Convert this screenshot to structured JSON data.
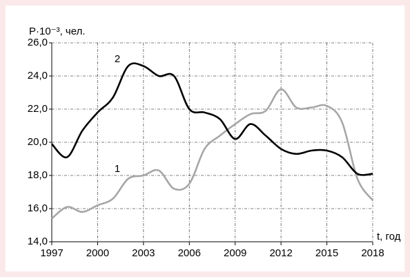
{
  "chart_data": {
    "type": "line",
    "y_label": "P·10⁻³, чел.",
    "x_label": "t, год",
    "x": [
      1997,
      1998,
      1999,
      2000,
      2001,
      2002,
      2003,
      2004,
      2005,
      2006,
      2007,
      2008,
      2009,
      2010,
      2011,
      2012,
      2013,
      2014,
      2015,
      2016,
      2017,
      2018
    ],
    "series": [
      {
        "name": "1",
        "color": "#a6a6a6",
        "values": [
          15.4,
          16.1,
          15.8,
          16.2,
          16.6,
          17.8,
          18.0,
          18.3,
          17.2,
          17.5,
          19.6,
          20.4,
          21.1,
          21.7,
          21.9,
          23.2,
          22.1,
          22.1,
          22.2,
          21.2,
          17.8,
          16.5
        ]
      },
      {
        "name": "2",
        "color": "#000000",
        "values": [
          19.9,
          19.1,
          20.7,
          21.8,
          22.7,
          24.6,
          24.6,
          24.0,
          24.0,
          22.0,
          21.8,
          21.4,
          20.2,
          21.1,
          20.4,
          19.6,
          19.3,
          19.5,
          19.5,
          19.1,
          18.1,
          18.1
        ]
      }
    ],
    "xlim": [
      1997,
      2018
    ],
    "xticks": [
      1997,
      2000,
      2003,
      2006,
      2009,
      2012,
      2015,
      2018
    ],
    "ylim": [
      14,
      26
    ],
    "yticks": [
      {
        "value": 14,
        "label": "14,0"
      },
      {
        "value": 16,
        "label": "16,0"
      },
      {
        "value": 18,
        "label": "18,0"
      },
      {
        "value": 20,
        "label": "20,0"
      },
      {
        "value": 22,
        "label": "22,0"
      },
      {
        "value": 24,
        "label": "24,0"
      },
      {
        "value": 26,
        "label": "26,0"
      }
    ],
    "grid": true
  }
}
